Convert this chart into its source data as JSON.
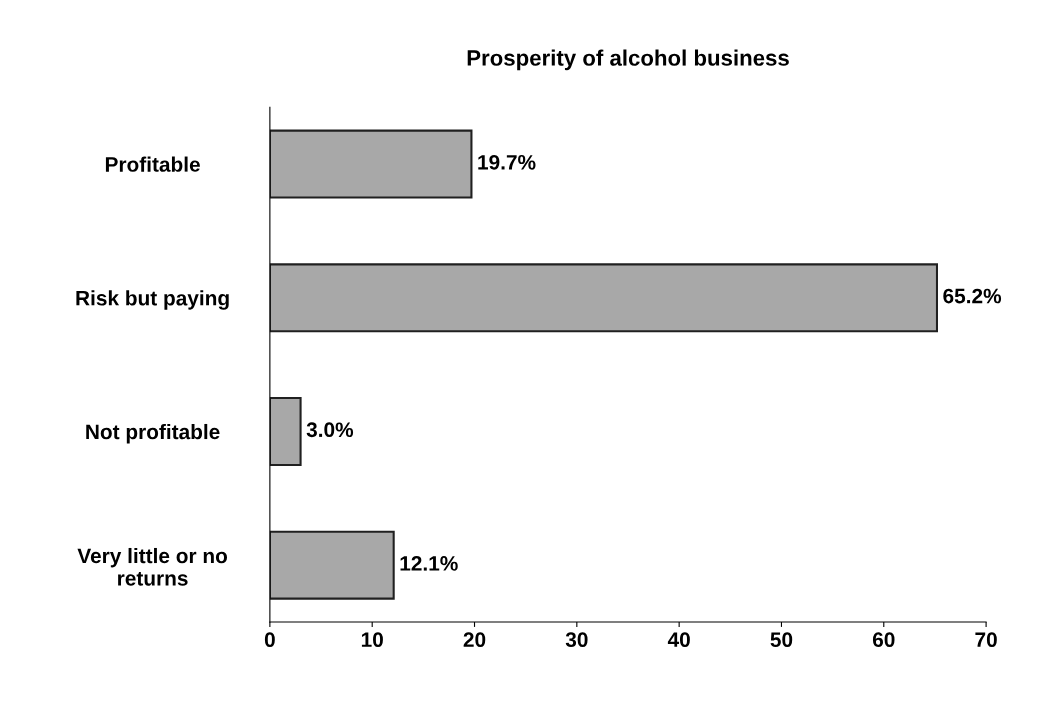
{
  "chart_data": {
    "type": "bar",
    "orientation": "horizontal",
    "title": "Prosperity of alcohol business",
    "categories": [
      "Profitable",
      "Risk but paying",
      "Not profitable",
      "Very little or no\nreturns"
    ],
    "values": [
      19.7,
      65.2,
      3.0,
      12.1
    ],
    "value_labels": [
      "19.7%",
      "65.2%",
      "3.0%",
      "12.1%"
    ],
    "color": "#a8a8a8",
    "xlim": [
      0,
      70
    ],
    "xticks": [
      0,
      10,
      20,
      30,
      40,
      50,
      60,
      70
    ],
    "grid": false,
    "legend": false
  }
}
